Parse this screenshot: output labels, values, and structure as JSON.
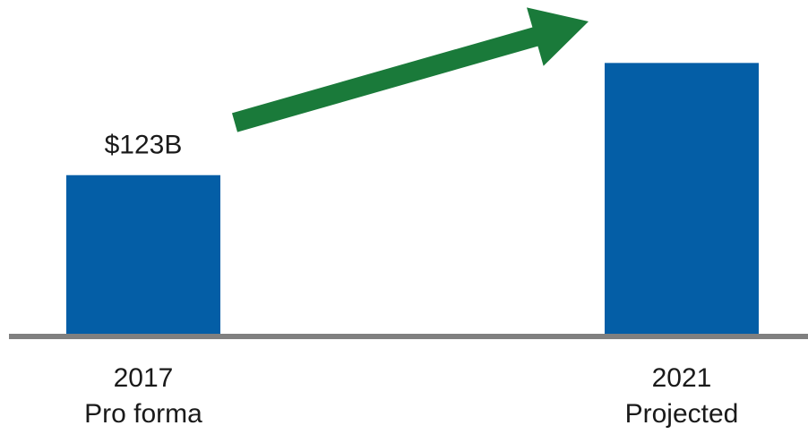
{
  "chart_data": {
    "type": "bar",
    "categories": [
      [
        "2017",
        "Pro forma"
      ],
      [
        "2021",
        "Projected"
      ]
    ],
    "values": [
      123,
      210
    ],
    "data_labels": [
      "$123B",
      ""
    ],
    "title": "",
    "xlabel": "",
    "ylabel": "",
    "ylim": [
      0,
      238
    ],
    "grid": false,
    "legend": "none",
    "annotations": [
      {
        "type": "growth-arrow",
        "from_category": 0,
        "to_category": 1,
        "color": "#1a7a3a"
      }
    ]
  },
  "colors": {
    "bar": "#045ea6",
    "arrow": "#1a7a3a",
    "baseline": "#808080",
    "text": "#1a1a1a"
  }
}
